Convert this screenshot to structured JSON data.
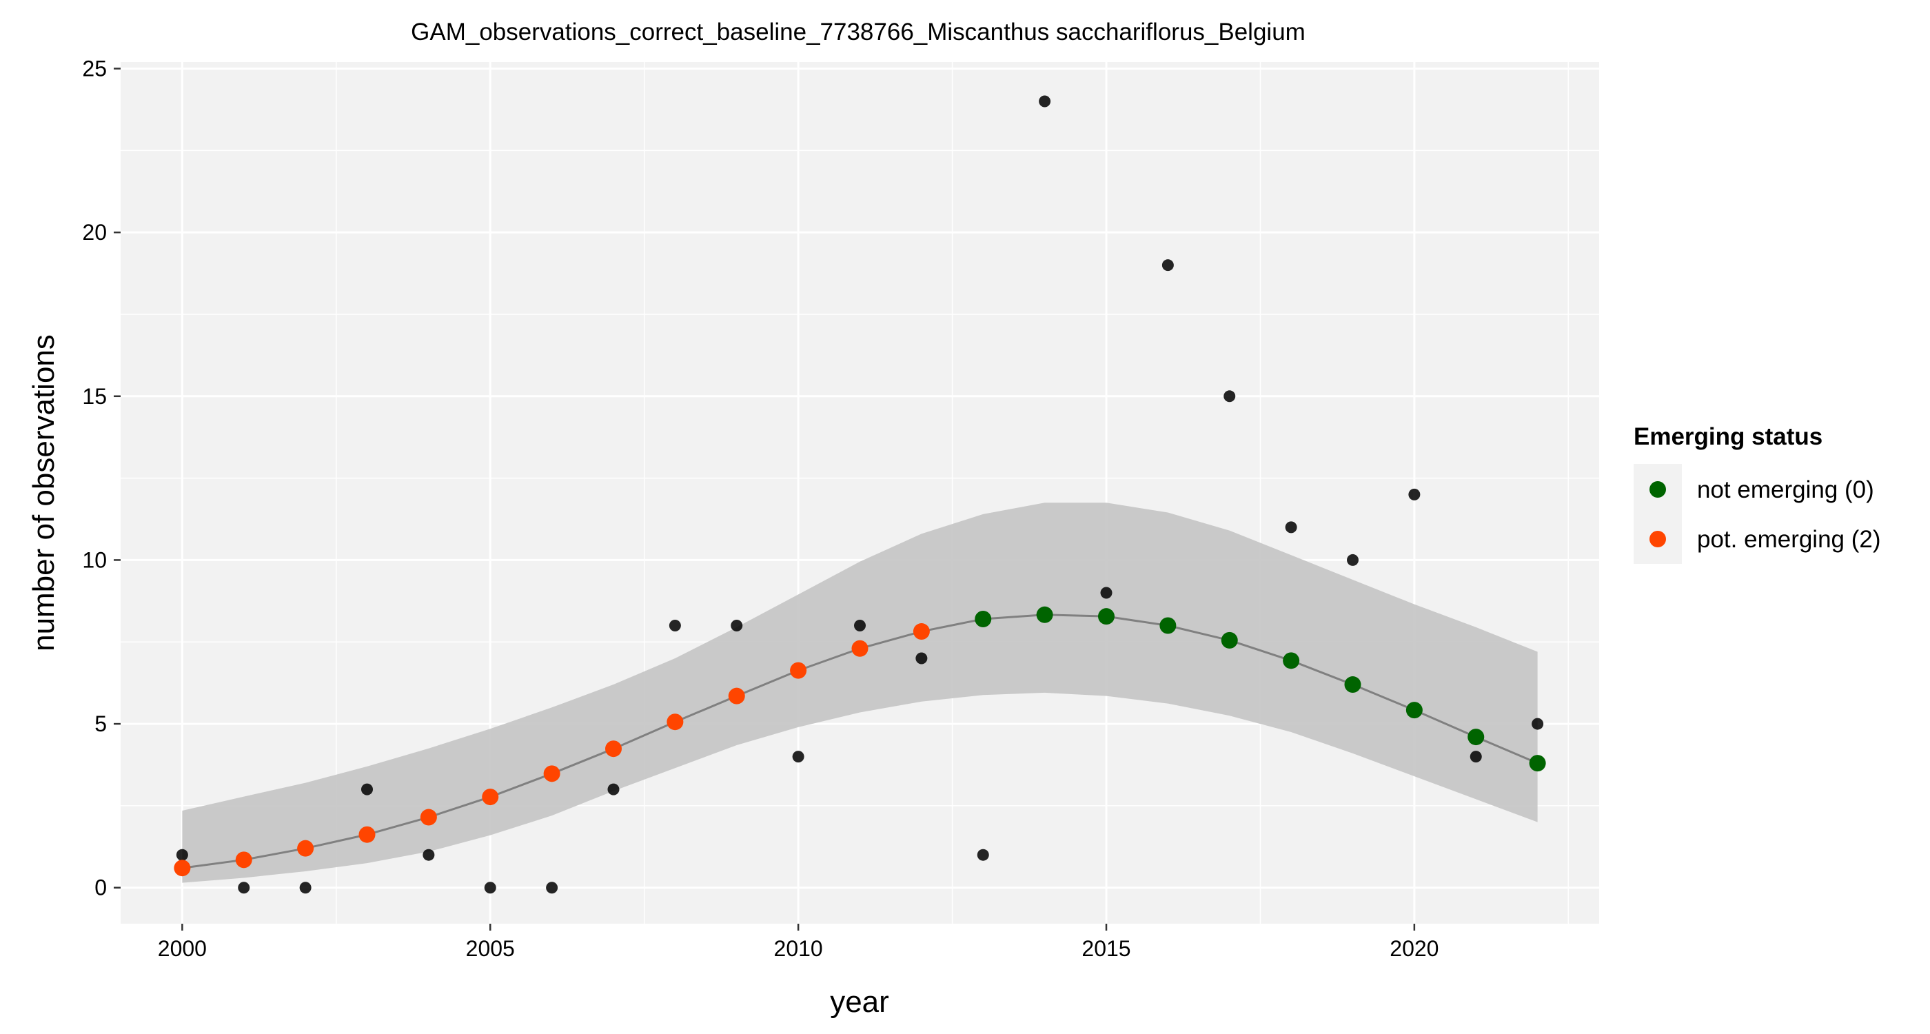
{
  "chart_data": {
    "type": "scatter",
    "title": "GAM_observations_correct_baseline_7738766_Miscanthus sacchariflorus_Belgium",
    "xlabel": "year",
    "ylabel": "number of observations",
    "xlim": [
      1999,
      2023
    ],
    "ylim": [
      -1.1,
      25.2
    ],
    "x_ticks": [
      2000,
      2005,
      2010,
      2015,
      2020
    ],
    "y_ticks": [
      0,
      5,
      10,
      15,
      20,
      25
    ],
    "grid": true,
    "legend_position": "right",
    "legend": {
      "title": "Emerging status",
      "entries": [
        {
          "label": "not emerging (0)",
          "color": "#006400"
        },
        {
          "label": "pot. emerging (2)",
          "color": "#ff4500"
        }
      ]
    },
    "colors": {
      "observed": "#000000",
      "fit_line": "#808080",
      "ribbon": "#c4c4c4",
      "not_emerging": "#006400",
      "pot_emerging": "#ff4500"
    },
    "series": [
      {
        "role": "observed",
        "x": [
          2000,
          2001,
          2002,
          2003,
          2004,
          2005,
          2006,
          2007,
          2008,
          2009,
          2010,
          2011,
          2012,
          2013,
          2014,
          2015,
          2016,
          2017,
          2018,
          2019,
          2020,
          2021,
          2022
        ],
        "y": [
          1,
          0,
          0,
          3,
          1,
          0,
          0,
          3,
          8,
          8,
          4,
          8,
          7,
          1,
          24,
          9,
          19,
          15,
          11,
          10,
          12,
          4,
          5
        ]
      },
      {
        "role": "gam_fit",
        "x": [
          2000,
          2001,
          2002,
          2003,
          2004,
          2005,
          2006,
          2007,
          2008,
          2009,
          2010,
          2011,
          2012,
          2013,
          2014,
          2015,
          2016,
          2017,
          2018,
          2019,
          2020,
          2021,
          2022
        ],
        "y": [
          0.6,
          0.85,
          1.2,
          1.62,
          2.15,
          2.77,
          3.48,
          4.24,
          5.06,
          5.85,
          6.63,
          7.3,
          7.82,
          8.2,
          8.33,
          8.28,
          8.0,
          7.55,
          6.93,
          6.2,
          5.42,
          4.6,
          3.8
        ],
        "status": [
          "pot. emerging (2)",
          "pot. emerging (2)",
          "pot. emerging (2)",
          "pot. emerging (2)",
          "pot. emerging (2)",
          "pot. emerging (2)",
          "pot. emerging (2)",
          "pot. emerging (2)",
          "pot. emerging (2)",
          "pot. emerging (2)",
          "pot. emerging (2)",
          "pot. emerging (2)",
          "pot. emerging (2)",
          "not emerging (0)",
          "not emerging (0)",
          "not emerging (0)",
          "not emerging (0)",
          "not emerging (0)",
          "not emerging (0)",
          "not emerging (0)",
          "not emerging (0)",
          "not emerging (0)",
          "not emerging (0)"
        ]
      },
      {
        "role": "ci_lower",
        "x": [
          2000,
          2001,
          2002,
          2003,
          2004,
          2005,
          2006,
          2007,
          2008,
          2009,
          2010,
          2011,
          2012,
          2013,
          2014,
          2015,
          2016,
          2017,
          2018,
          2019,
          2020,
          2021,
          2022
        ],
        "y": [
          0.15,
          0.3,
          0.5,
          0.75,
          1.1,
          1.6,
          2.2,
          2.95,
          3.65,
          4.35,
          4.9,
          5.35,
          5.68,
          5.88,
          5.95,
          5.85,
          5.62,
          5.25,
          4.75,
          4.1,
          3.4,
          2.7,
          2.0
        ]
      },
      {
        "role": "ci_upper",
        "x": [
          2000,
          2001,
          2002,
          2003,
          2004,
          2005,
          2006,
          2007,
          2008,
          2009,
          2010,
          2011,
          2012,
          2013,
          2014,
          2015,
          2016,
          2017,
          2018,
          2019,
          2020,
          2021,
          2022
        ],
        "y": [
          2.35,
          2.78,
          3.2,
          3.7,
          4.25,
          4.85,
          5.5,
          6.2,
          7.0,
          7.95,
          8.95,
          9.95,
          10.8,
          11.4,
          11.75,
          11.75,
          11.45,
          10.9,
          10.15,
          9.4,
          8.65,
          7.95,
          7.2
        ]
      }
    ]
  }
}
